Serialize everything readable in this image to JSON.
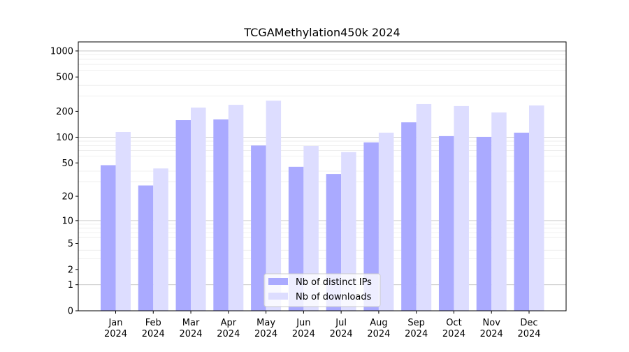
{
  "chart_data": {
    "type": "bar",
    "title": "TCGAMethylation450k 2024",
    "xlabel": "",
    "ylabel": "",
    "yscale": "log(1+y)",
    "ylim": [
      0,
      1272
    ],
    "yticks": [
      0,
      1,
      2,
      5,
      10,
      20,
      50,
      100,
      200,
      500,
      1000
    ],
    "grid": true,
    "legend_position": "bottom-center",
    "categories": [
      [
        "Jan",
        "2024"
      ],
      [
        "Feb",
        "2024"
      ],
      [
        "Mar",
        "2024"
      ],
      [
        "Apr",
        "2024"
      ],
      [
        "May",
        "2024"
      ],
      [
        "Jun",
        "2024"
      ],
      [
        "Jul",
        "2024"
      ],
      [
        "Aug",
        "2024"
      ],
      [
        "Sep",
        "2024"
      ],
      [
        "Oct",
        "2024"
      ],
      [
        "Nov",
        "2024"
      ],
      [
        "Dec",
        "2024"
      ]
    ],
    "series": [
      {
        "name": "Nb of distinct IPs",
        "color": "#aaaaff",
        "values": [
          47,
          27,
          158,
          161,
          80,
          45,
          37,
          87,
          149,
          103,
          101,
          113
        ]
      },
      {
        "name": "Nb of downloads",
        "color": "#ddddff",
        "values": [
          115,
          43,
          221,
          238,
          266,
          79,
          67,
          113,
          243,
          230,
          194,
          234
        ]
      }
    ]
  }
}
